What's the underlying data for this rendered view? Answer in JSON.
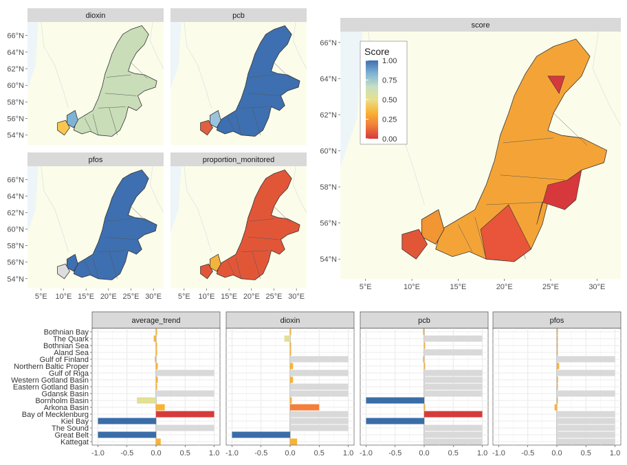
{
  "chart_data": [
    {
      "type": "map",
      "panels": [
        {
          "title": "dioxin"
        },
        {
          "title": "pcb"
        },
        {
          "title": "pfos"
        },
        {
          "title": "proportion_monitored"
        }
      ],
      "x_ticks": [
        "5°E",
        "10°E",
        "15°E",
        "20°E",
        "25°E",
        "30°E"
      ],
      "y_ticks": [
        "54°N",
        "56°N",
        "58°N",
        "60°N",
        "62°N",
        "64°N",
        "66°N"
      ]
    },
    {
      "type": "map",
      "title": "score",
      "x_ticks": [
        "5°E",
        "10°E",
        "15°E",
        "20°E",
        "25°E",
        "30°E"
      ],
      "y_ticks": [
        "54°N",
        "56°N",
        "58°N",
        "60°N",
        "62°N",
        "64°N",
        "66°N"
      ],
      "legend": {
        "title": "Score",
        "position": "top-left",
        "ticks": [
          "1.00",
          "0.75",
          "0.50",
          "0.25",
          "0.00"
        ],
        "colors": [
          "#3e6fb0",
          "#7fb3d5",
          "#c6dfc4",
          "#e9e08c",
          "#f9b233",
          "#f07c3a",
          "#d7383c"
        ]
      }
    },
    {
      "type": "bar",
      "orientation": "horizontal",
      "categories": [
        "Bothnian Bay",
        "The Quark",
        "Bothnian Sea",
        "Aland Sea",
        "Gulf of Finland",
        "Northern Baltic Proper",
        "Gulf of Riga",
        "Western Gotland Basin",
        "Eastern Gotland Basin",
        "Gdansk Basin",
        "Bornholm Basin",
        "Arkona Basin",
        "Bay of Mecklenburg",
        "Kiel Bay",
        "The Sound",
        "Great Belt",
        "Kattegat"
      ],
      "x_ticks": [
        "-1.0",
        "-0.5",
        "0.0",
        "0.5",
        "1.0"
      ],
      "xlim": [
        -1.1,
        1.1
      ],
      "panels": [
        {
          "title": "average_trend",
          "values": [
            0,
            -0.04,
            0,
            0,
            -0.02,
            0.03,
            1.0,
            0.03,
            0,
            1.0,
            -0.33,
            0.15,
            1.0,
            -1.0,
            1.0,
            -1.0,
            0.08
          ],
          "colors": [
            "#f9b233",
            "#f9b233",
            "#f9b233",
            "#f9b233",
            "#f9b233",
            "#f9b233",
            "#d9d9d9",
            "#f9b233",
            "#f9b233",
            "#d9d9d9",
            "#e1e093",
            "#f9b233",
            "#d63b3b",
            "#3a6da8",
            "#d9d9d9",
            "#3a6da8",
            "#f9b233"
          ]
        },
        {
          "title": "dioxin",
          "values": [
            0,
            -0.1,
            0,
            0,
            1.0,
            0.05,
            1.0,
            0.05,
            1.0,
            1.0,
            0.03,
            0.5,
            1.0,
            1.0,
            1.0,
            -1.0,
            0.12
          ],
          "colors": [
            "#f9b233",
            "#e1e093",
            "#f9b233",
            "#f9b233",
            "#d9d9d9",
            "#f9b233",
            "#d9d9d9",
            "#f9b233",
            "#d9d9d9",
            "#d9d9d9",
            "#f9b233",
            "#f47e3a",
            "#d9d9d9",
            "#d9d9d9",
            "#d9d9d9",
            "#3a6da8",
            "#f9b233"
          ]
        },
        {
          "title": "pcb",
          "values": [
            -0.02,
            1.0,
            0,
            1.0,
            -0.02,
            0,
            1.0,
            1.0,
            1.0,
            1.0,
            -1.0,
            0,
            1.0,
            -1.0,
            1.0,
            1.0,
            1.0
          ],
          "colors": [
            "#f9b233",
            "#d9d9d9",
            "#f9b233",
            "#d9d9d9",
            "#f9b233",
            "#f9b233",
            "#d9d9d9",
            "#d9d9d9",
            "#d9d9d9",
            "#d9d9d9",
            "#3a6da8",
            "#f9b233",
            "#d63b3b",
            "#3a6da8",
            "#d9d9d9",
            "#d9d9d9",
            "#d9d9d9"
          ]
        },
        {
          "title": "pfos",
          "values": [
            0,
            0,
            0,
            0,
            1.0,
            0.04,
            1.0,
            0.02,
            0.0,
            1.0,
            0,
            -0.04,
            1.0,
            1.0,
            1.0,
            1.0,
            1.0
          ],
          "colors": [
            "#f9b233",
            "#f9b233",
            "#f9b233",
            "#f9b233",
            "#d9d9d9",
            "#f9b233",
            "#d9d9d9",
            "#f9b233",
            "#f9b233",
            "#d9d9d9",
            "#f9b233",
            "#f9b233",
            "#d9d9d9",
            "#d9d9d9",
            "#d9d9d9",
            "#d9d9d9",
            "#d9d9d9"
          ]
        }
      ]
    }
  ]
}
